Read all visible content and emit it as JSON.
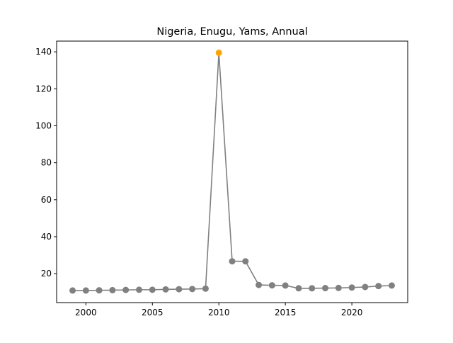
{
  "chart_data": {
    "type": "line",
    "title": "Nigeria, Enugu, Yams, Annual",
    "xlabel": "",
    "ylabel": "",
    "xlim": [
      1997.8,
      2024.2
    ],
    "ylim": [
      4.35,
      145.8
    ],
    "x_ticks": [
      2000,
      2005,
      2010,
      2015,
      2020
    ],
    "y_ticks": [
      20,
      40,
      60,
      80,
      100,
      120,
      140
    ],
    "grid": false,
    "legend": "none",
    "series": [
      {
        "x": [
          1999,
          2000,
          2001,
          2002,
          2003,
          2004,
          2005,
          2006,
          2007,
          2008,
          2009,
          2010,
          2011,
          2012,
          2013,
          2014,
          2015,
          2016,
          2017,
          2018,
          2019,
          2020,
          2021,
          2022,
          2023
        ],
        "values": [
          10.9,
          10.9,
          11.0,
          11.1,
          11.2,
          11.3,
          11.3,
          11.5,
          11.6,
          11.7,
          11.9,
          139.5,
          26.7,
          26.7,
          13.9,
          13.7,
          13.6,
          12.1,
          12.1,
          12.2,
          12.3,
          12.5,
          12.8,
          13.3,
          13.6
        ],
        "line_color": "#808080",
        "marker_color": "#808080",
        "highlight_index": 11,
        "highlight_color": "#ffa500"
      }
    ]
  }
}
